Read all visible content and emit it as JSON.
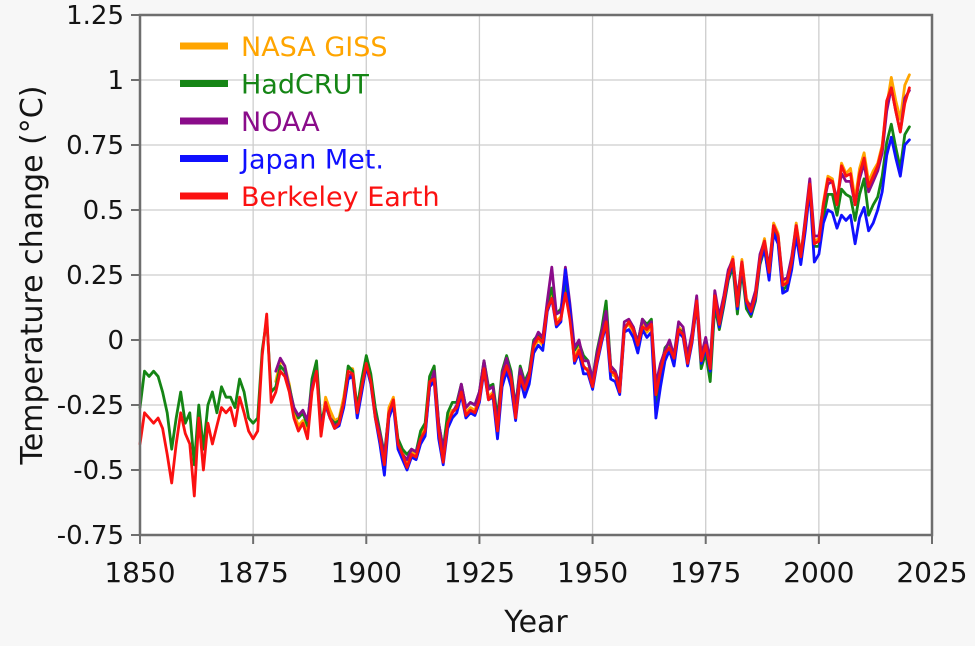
{
  "style": {
    "background": "#f7f7f7",
    "plot_background": "#ffffff",
    "grid_color": "#cdcdcd",
    "spine_color": "#6e6e6e",
    "text_color": "#141414"
  },
  "chart_data": {
    "type": "line",
    "title": "",
    "xlabel": "Year",
    "ylabel": "Temperature change (°C)",
    "xlim": [
      1850,
      2025
    ],
    "ylim": [
      -0.75,
      1.25
    ],
    "grid": true,
    "legend_position": "upper left",
    "x_ticks": [
      1850,
      1875,
      1900,
      1925,
      1950,
      1975,
      2000,
      2025
    ],
    "x_tick_labels": [
      "1850",
      "1875",
      "1900",
      "1925",
      "1950",
      "1975",
      "2000",
      "2025"
    ],
    "y_ticks": [
      1.25,
      1,
      0.75,
      0.5,
      0.25,
      0,
      -0.25,
      -0.5,
      -0.75
    ],
    "y_tick_labels": [
      "1.25",
      "1",
      "0.75",
      "0.5",
      "0.25",
      "0",
      "-0.25",
      "-0.5",
      "-0.75"
    ],
    "series": [
      {
        "name": "NASA GISS",
        "color": "#FFA500",
        "start_year": 1880,
        "values": [
          -0.16,
          -0.08,
          -0.1,
          -0.17,
          -0.28,
          -0.33,
          -0.31,
          -0.36,
          -0.17,
          -0.1,
          -0.35,
          -0.22,
          -0.27,
          -0.31,
          -0.3,
          -0.22,
          -0.11,
          -0.11,
          -0.27,
          -0.17,
          -0.08,
          -0.15,
          -0.28,
          -0.37,
          -0.47,
          -0.26,
          -0.22,
          -0.39,
          -0.43,
          -0.48,
          -0.43,
          -0.44,
          -0.36,
          -0.34,
          -0.15,
          -0.14,
          -0.36,
          -0.46,
          -0.3,
          -0.27,
          -0.27,
          -0.19,
          -0.28,
          -0.26,
          -0.27,
          -0.22,
          -0.1,
          -0.22,
          -0.2,
          -0.36,
          -0.16,
          -0.09,
          -0.16,
          -0.29,
          -0.13,
          -0.2,
          -0.15,
          -0.03,
          0.0,
          -0.02,
          0.13,
          0.18,
          0.07,
          0.09,
          0.2,
          0.09,
          -0.07,
          -0.03,
          -0.11,
          -0.11,
          -0.17,
          -0.07,
          0.01,
          0.08,
          -0.13,
          -0.14,
          -0.19,
          0.05,
          0.06,
          0.03,
          -0.03,
          0.06,
          0.03,
          0.05,
          -0.2,
          -0.11,
          -0.06,
          -0.02,
          -0.08,
          0.05,
          0.03,
          -0.08,
          0.01,
          0.16,
          -0.07,
          -0.01,
          -0.1,
          0.18,
          0.07,
          0.16,
          0.26,
          0.32,
          0.14,
          0.31,
          0.16,
          0.12,
          0.18,
          0.32,
          0.39,
          0.27,
          0.45,
          0.41,
          0.22,
          0.23,
          0.31,
          0.45,
          0.33,
          0.46,
          0.61,
          0.38,
          0.39,
          0.53,
          0.63,
          0.62,
          0.53,
          0.68,
          0.64,
          0.66,
          0.54,
          0.66,
          0.72,
          0.61,
          0.65,
          0.68,
          0.75,
          0.9,
          1.01,
          0.92,
          0.85,
          0.98,
          1.02
        ]
      },
      {
        "name": "HadCRUT",
        "color": "#158515",
        "start_year": 1850,
        "values": [
          -0.26,
          -0.12,
          -0.14,
          -0.12,
          -0.14,
          -0.2,
          -0.28,
          -0.42,
          -0.3,
          -0.2,
          -0.32,
          -0.28,
          -0.48,
          -0.25,
          -0.42,
          -0.25,
          -0.2,
          -0.28,
          -0.18,
          -0.22,
          -0.22,
          -0.26,
          -0.15,
          -0.2,
          -0.3,
          -0.32,
          -0.3,
          -0.04,
          0.08,
          -0.2,
          -0.18,
          -0.1,
          -0.12,
          -0.18,
          -0.26,
          -0.3,
          -0.28,
          -0.33,
          -0.15,
          -0.08,
          -0.32,
          -0.25,
          -0.3,
          -0.32,
          -0.31,
          -0.24,
          -0.1,
          -0.12,
          -0.26,
          -0.15,
          -0.06,
          -0.13,
          -0.26,
          -0.35,
          -0.44,
          -0.28,
          -0.24,
          -0.38,
          -0.42,
          -0.44,
          -0.42,
          -0.43,
          -0.35,
          -0.32,
          -0.14,
          -0.1,
          -0.32,
          -0.42,
          -0.28,
          -0.24,
          -0.24,
          -0.17,
          -0.26,
          -0.24,
          -0.25,
          -0.2,
          -0.08,
          -0.18,
          -0.17,
          -0.3,
          -0.12,
          -0.06,
          -0.12,
          -0.26,
          -0.1,
          -0.16,
          -0.12,
          0.0,
          0.02,
          0.0,
          0.14,
          0.2,
          0.1,
          0.12,
          0.22,
          0.12,
          -0.04,
          -0.01,
          -0.06,
          -0.08,
          -0.15,
          -0.04,
          0.04,
          0.15,
          -0.1,
          -0.12,
          -0.2,
          0.04,
          0.07,
          0.05,
          -0.01,
          0.08,
          0.06,
          0.08,
          -0.25,
          -0.12,
          -0.03,
          -0.01,
          -0.06,
          0.04,
          0.03,
          -0.09,
          0.0,
          0.14,
          -0.11,
          -0.05,
          -0.16,
          0.13,
          0.04,
          0.13,
          0.23,
          0.28,
          0.1,
          0.27,
          0.12,
          0.09,
          0.15,
          0.29,
          0.35,
          0.24,
          0.42,
          0.38,
          0.19,
          0.21,
          0.28,
          0.42,
          0.31,
          0.44,
          0.6,
          0.36,
          0.36,
          0.47,
          0.56,
          0.56,
          0.48,
          0.58,
          0.56,
          0.55,
          0.46,
          0.56,
          0.62,
          0.48,
          0.52,
          0.55,
          0.63,
          0.76,
          0.83,
          0.74,
          0.66,
          0.79,
          0.82
        ]
      },
      {
        "name": "NOAA",
        "color": "#8A0C8A",
        "start_year": 1880,
        "values": [
          -0.12,
          -0.07,
          -0.1,
          -0.19,
          -0.26,
          -0.29,
          -0.27,
          -0.31,
          -0.18,
          -0.12,
          -0.34,
          -0.25,
          -0.3,
          -0.33,
          -0.32,
          -0.25,
          -0.14,
          -0.13,
          -0.28,
          -0.19,
          -0.1,
          -0.16,
          -0.29,
          -0.36,
          -0.45,
          -0.28,
          -0.24,
          -0.4,
          -0.44,
          -0.46,
          -0.42,
          -0.43,
          -0.38,
          -0.36,
          -0.18,
          -0.12,
          -0.32,
          -0.42,
          -0.33,
          -0.28,
          -0.25,
          -0.17,
          -0.26,
          -0.24,
          -0.25,
          -0.2,
          -0.08,
          -0.19,
          -0.18,
          -0.33,
          -0.13,
          -0.07,
          -0.14,
          -0.26,
          -0.11,
          -0.17,
          -0.13,
          -0.01,
          0.03,
          0.01,
          0.15,
          0.28,
          0.1,
          0.11,
          0.28,
          0.14,
          -0.03,
          0.0,
          -0.08,
          -0.08,
          -0.15,
          -0.05,
          0.03,
          0.11,
          -0.1,
          -0.12,
          -0.17,
          0.07,
          0.08,
          0.05,
          -0.01,
          0.08,
          0.05,
          0.07,
          -0.17,
          -0.09,
          -0.04,
          0.0,
          -0.06,
          0.07,
          0.05,
          -0.06,
          0.03,
          0.17,
          -0.06,
          0.01,
          -0.08,
          0.19,
          0.09,
          0.17,
          0.27,
          0.31,
          0.16,
          0.3,
          0.15,
          0.13,
          0.19,
          0.33,
          0.38,
          0.28,
          0.44,
          0.4,
          0.23,
          0.24,
          0.32,
          0.44,
          0.32,
          0.47,
          0.62,
          0.4,
          0.4,
          0.52,
          0.6,
          0.61,
          0.54,
          0.64,
          0.61,
          0.61,
          0.52,
          0.62,
          0.68,
          0.57,
          0.61,
          0.65,
          0.72,
          0.88,
          0.97,
          0.88,
          0.8,
          0.93,
          0.96
        ]
      },
      {
        "name": "Japan Met.",
        "color": "#1010FF",
        "start_year": 1891,
        "values": [
          -0.25,
          -0.3,
          -0.34,
          -0.33,
          -0.26,
          -0.15,
          -0.14,
          -0.3,
          -0.2,
          -0.1,
          -0.17,
          -0.3,
          -0.4,
          -0.52,
          -0.3,
          -0.25,
          -0.42,
          -0.46,
          -0.5,
          -0.45,
          -0.46,
          -0.4,
          -0.37,
          -0.18,
          -0.16,
          -0.38,
          -0.48,
          -0.34,
          -0.3,
          -0.28,
          -0.21,
          -0.3,
          -0.28,
          -0.29,
          -0.24,
          -0.12,
          -0.23,
          -0.22,
          -0.38,
          -0.18,
          -0.12,
          -0.18,
          -0.31,
          -0.15,
          -0.22,
          -0.17,
          -0.05,
          -0.02,
          -0.04,
          0.11,
          0.16,
          0.05,
          0.07,
          0.27,
          0.12,
          -0.09,
          -0.05,
          -0.13,
          -0.13,
          -0.19,
          -0.09,
          -0.01,
          0.06,
          -0.15,
          -0.16,
          -0.21,
          0.03,
          0.04,
          0.01,
          -0.05,
          0.04,
          0.01,
          0.03,
          -0.3,
          -0.18,
          -0.08,
          -0.04,
          -0.1,
          0.03,
          0.01,
          -0.1,
          -0.01,
          0.14,
          -0.09,
          -0.03,
          -0.12,
          0.16,
          0.05,
          0.14,
          0.24,
          0.3,
          0.12,
          0.29,
          0.14,
          0.1,
          0.16,
          0.3,
          0.35,
          0.23,
          0.41,
          0.37,
          0.18,
          0.19,
          0.27,
          0.4,
          0.29,
          0.42,
          0.58,
          0.3,
          0.33,
          0.45,
          0.5,
          0.49,
          0.43,
          0.48,
          0.46,
          0.48,
          0.37,
          0.47,
          0.51,
          0.42,
          0.45,
          0.5,
          0.57,
          0.71,
          0.78,
          0.7,
          0.63,
          0.75,
          0.77
        ]
      },
      {
        "name": "Berkeley Earth",
        "color": "#FB1111",
        "start_year": 1850,
        "values": [
          -0.4,
          -0.28,
          -0.3,
          -0.32,
          -0.3,
          -0.34,
          -0.44,
          -0.55,
          -0.4,
          -0.28,
          -0.36,
          -0.4,
          -0.6,
          -0.3,
          -0.5,
          -0.32,
          -0.4,
          -0.33,
          -0.26,
          -0.28,
          -0.26,
          -0.33,
          -0.22,
          -0.28,
          -0.35,
          -0.38,
          -0.35,
          -0.06,
          0.1,
          -0.24,
          -0.2,
          -0.12,
          -0.14,
          -0.2,
          -0.3,
          -0.35,
          -0.32,
          -0.38,
          -0.2,
          -0.12,
          -0.37,
          -0.24,
          -0.3,
          -0.34,
          -0.32,
          -0.24,
          -0.12,
          -0.13,
          -0.28,
          -0.18,
          -0.09,
          -0.16,
          -0.3,
          -0.38,
          -0.48,
          -0.28,
          -0.23,
          -0.4,
          -0.44,
          -0.49,
          -0.44,
          -0.45,
          -0.38,
          -0.35,
          -0.16,
          -0.15,
          -0.35,
          -0.47,
          -0.32,
          -0.28,
          -0.26,
          -0.2,
          -0.29,
          -0.27,
          -0.28,
          -0.23,
          -0.11,
          -0.23,
          -0.21,
          -0.35,
          -0.15,
          -0.1,
          -0.15,
          -0.3,
          -0.14,
          -0.19,
          -0.14,
          -0.02,
          0.01,
          -0.01,
          0.12,
          0.16,
          0.06,
          0.08,
          0.18,
          0.08,
          -0.08,
          -0.04,
          -0.1,
          -0.12,
          -0.18,
          -0.08,
          0.0,
          0.07,
          -0.12,
          -0.13,
          -0.2,
          0.04,
          0.07,
          0.04,
          -0.02,
          0.05,
          0.04,
          0.06,
          -0.21,
          -0.12,
          -0.05,
          -0.03,
          -0.07,
          0.04,
          0.02,
          -0.09,
          0.0,
          0.15,
          -0.08,
          -0.02,
          -0.11,
          0.17,
          0.06,
          0.15,
          0.25,
          0.31,
          0.13,
          0.3,
          0.15,
          0.11,
          0.17,
          0.31,
          0.38,
          0.26,
          0.44,
          0.4,
          0.21,
          0.22,
          0.3,
          0.44,
          0.32,
          0.45,
          0.6,
          0.37,
          0.38,
          0.52,
          0.62,
          0.61,
          0.52,
          0.67,
          0.63,
          0.64,
          0.52,
          0.64,
          0.7,
          0.59,
          0.63,
          0.67,
          0.74,
          0.92,
          0.97,
          0.88,
          0.8,
          0.91,
          0.97
        ]
      }
    ]
  }
}
